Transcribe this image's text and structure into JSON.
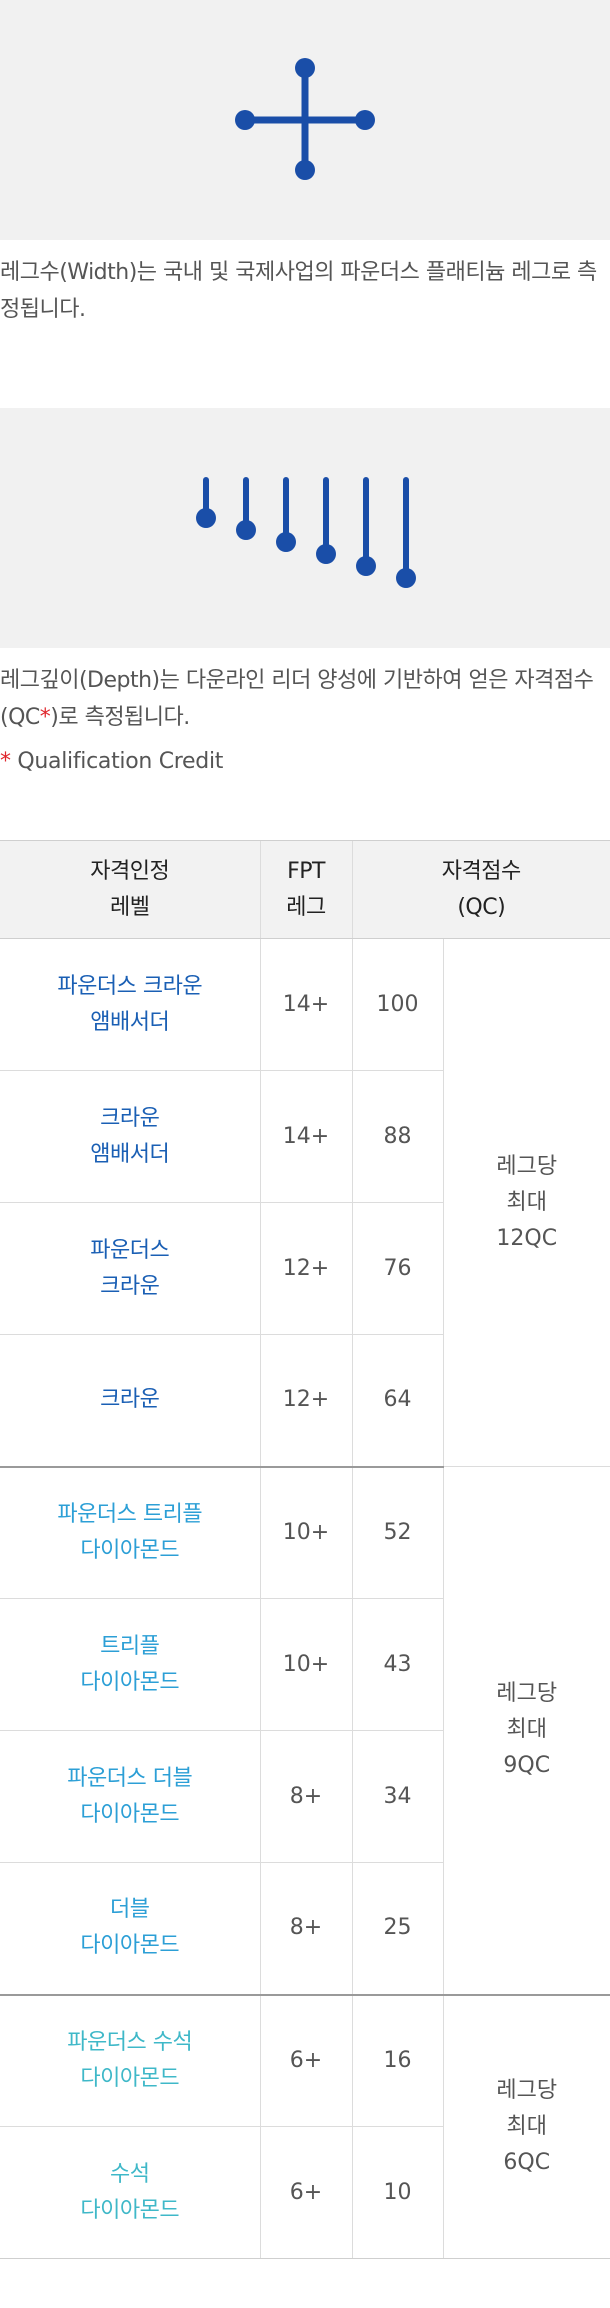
{
  "section_width": {
    "description": "레그수(Width)는 국내 및 국제사업의 파운더스 플래티늄 레그로 측정됩니다."
  },
  "section_depth": {
    "description_before": "레그깊이(Depth)는 다운라인 리더 양성에 기반하여 얻은 자격점수(QC",
    "description_star": "*",
    "description_after": ")로 측정됩니다."
  },
  "footnote": {
    "star": "*",
    "text": " Qualification Credit"
  },
  "colors": {
    "accent_blue": "#1a4ea8",
    "red_star": "#e0262c",
    "crown_text": "#1a5fb4",
    "diamond_text": "#2c9fd6",
    "emerald_text": "#3fb8c8"
  },
  "table": {
    "headers": [
      "자격인정\n레벨",
      "FPT\n레그",
      "자격점수\n(QC)"
    ],
    "rows": [
      {
        "level": "파운더스 크라운\n앰배서더",
        "fpt": "14+",
        "qc": "100"
      },
      {
        "level": "크라운\n앰배서더",
        "fpt": "14+",
        "qc": "88"
      },
      {
        "level": "파운더스\n크라운",
        "fpt": "12+",
        "qc": "76"
      },
      {
        "level": "크라운",
        "fpt": "12+",
        "qc": "64"
      },
      {
        "level": "파운더스 트리플\n다이아몬드",
        "fpt": "10+",
        "qc": "52"
      },
      {
        "level": "트리플\n다이아몬드",
        "fpt": "10+",
        "qc": "43"
      },
      {
        "level": "파운더스 더블\n다이아몬드",
        "fpt": "8+",
        "qc": "34"
      },
      {
        "level": "더블\n다이아몬드",
        "fpt": "8+",
        "qc": "25"
      },
      {
        "level": "파운더스 수석\n다이아몬드",
        "fpt": "6+",
        "qc": "16"
      },
      {
        "level": "수석\n다이아몬드",
        "fpt": "6+",
        "qc": "10"
      }
    ],
    "group_max": [
      {
        "text": "레그당\n최대\n12QC"
      },
      {
        "text": "레그당\n최대\n9QC"
      },
      {
        "text": "레그당\n최대\n6QC"
      }
    ]
  }
}
